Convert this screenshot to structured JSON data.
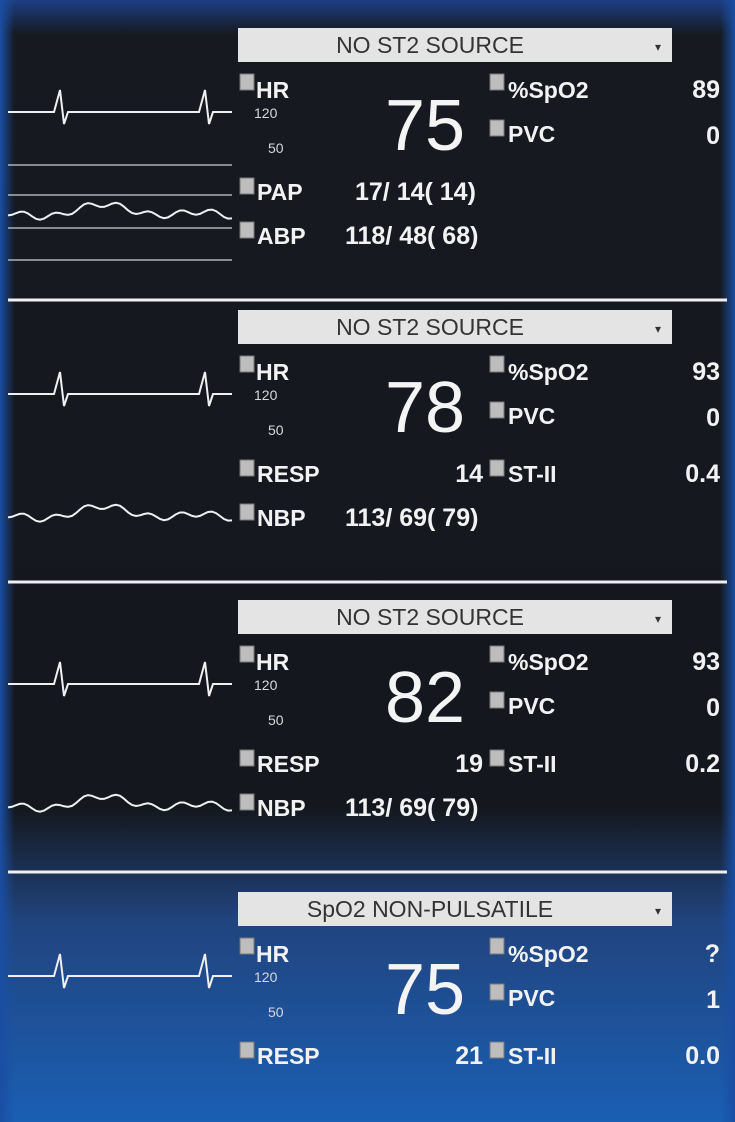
{
  "panels": [
    {
      "alarm": "NO ST2 SOURCE",
      "hr_label": "HR",
      "hr_high": "120",
      "hr_low": "50",
      "hr": "75",
      "spo2_label": "%SpO2",
      "spo2": "89",
      "pvc_label": "PVC",
      "pvc": "0",
      "rows": [
        [
          {
            "label": "PAP",
            "value": "17/ 14( 14)"
          }
        ],
        [
          {
            "label": "ABP",
            "value": "118/ 48( 68)"
          }
        ]
      ]
    },
    {
      "alarm": "NO ST2 SOURCE",
      "hr_label": "HR",
      "hr_high": "120",
      "hr_low": "50",
      "hr": "78",
      "spo2_label": "%SpO2",
      "spo2": "93",
      "pvc_label": "PVC",
      "pvc": "0",
      "rows": [
        [
          {
            "label": "RESP",
            "value": "14"
          },
          {
            "label": "ST-II",
            "value": "0.4"
          }
        ],
        [
          {
            "label": "NBP",
            "value": "113/ 69( 79)"
          }
        ]
      ]
    },
    {
      "alarm": "NO ST2 SOURCE",
      "hr_label": "HR",
      "hr_high": "120",
      "hr_low": "50",
      "hr": "82",
      "spo2_label": "%SpO2",
      "spo2": "93",
      "pvc_label": "PVC",
      "pvc": "0",
      "rows": [
        [
          {
            "label": "RESP",
            "value": "19"
          },
          {
            "label": "ST-II",
            "value": "0.2"
          }
        ],
        [
          {
            "label": "NBP",
            "value": "113/ 69( 79)"
          }
        ]
      ]
    },
    {
      "alarm": "SpO2 NON-PULSATILE",
      "hr_label": "HR",
      "hr_high": "120",
      "hr_low": "50",
      "hr": "75",
      "spo2_label": "%SpO2",
      "spo2": "?",
      "pvc_label": "PVC",
      "pvc": "1",
      "rows": [
        [
          {
            "label": "RESP",
            "value": "21"
          },
          {
            "label": "ST-II",
            "value": "0.0"
          }
        ]
      ]
    }
  ]
}
